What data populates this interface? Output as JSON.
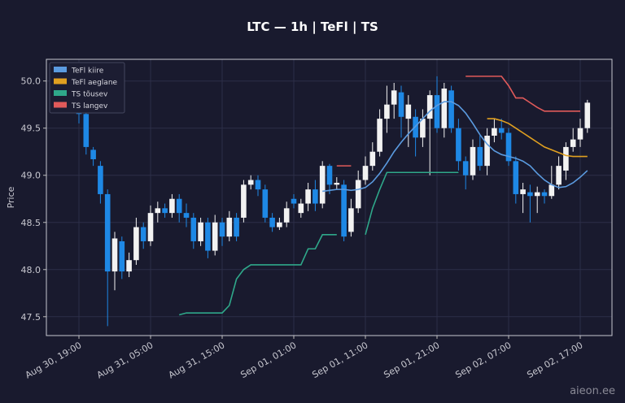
{
  "chart_data": {
    "type": "candlestick",
    "title": "LTC — 1h  |  TeFl  |  TS",
    "y_label": "Price",
    "watermark": "aieon.ee",
    "up_color": "#f2f2f2",
    "down_color": "#1e88e5",
    "grid": true,
    "legend": "upper left",
    "categories": [
      "Aug 30, 19:00",
      null,
      null,
      null,
      null,
      null,
      null,
      null,
      null,
      null,
      "Aug 31, 05:00",
      null,
      null,
      null,
      null,
      null,
      null,
      null,
      null,
      null,
      "Aug 31, 15:00",
      null,
      null,
      null,
      null,
      null,
      null,
      null,
      null,
      null,
      "Sep 01, 01:00",
      null,
      null,
      null,
      null,
      null,
      null,
      null,
      null,
      null,
      "Sep 01, 11:00",
      null,
      null,
      null,
      null,
      null,
      null,
      null,
      null,
      null,
      "Sep 01, 21:00",
      null,
      null,
      null,
      null,
      null,
      null,
      null,
      null,
      null,
      "Sep 02, 07:00",
      null,
      null,
      null,
      null,
      null,
      null,
      null,
      null,
      null,
      "Sep 02, 17:00",
      null
    ],
    "open": [
      49.8,
      49.65,
      49.27,
      49.1,
      48.8,
      47.98,
      48.3,
      47.98,
      48.1,
      48.45,
      48.3,
      48.6,
      48.65,
      48.6,
      48.75,
      48.6,
      48.55,
      48.3,
      48.5,
      48.2,
      48.5,
      48.35,
      48.55,
      48.55,
      48.9,
      48.95,
      48.85,
      48.55,
      48.45,
      48.5,
      48.75,
      48.6,
      48.7,
      48.85,
      48.7,
      49.1,
      48.9,
      48.9,
      48.4,
      48.65,
      48.95,
      49.1,
      49.25,
      49.6,
      49.75,
      49.88,
      49.6,
      49.62,
      49.4,
      49.6,
      49.85,
      49.5,
      49.9,
      49.5,
      49.15,
      49.0,
      49.3,
      49.1,
      49.42,
      49.5,
      49.45,
      49.15,
      48.8,
      48.82,
      48.78,
      48.82,
      48.78,
      48.9,
      49.05,
      49.3,
      49.38,
      49.5
    ],
    "high": [
      49.88,
      49.72,
      49.3,
      49.15,
      48.85,
      48.4,
      48.35,
      48.18,
      48.55,
      48.5,
      48.68,
      48.72,
      48.7,
      48.8,
      48.8,
      48.7,
      48.6,
      48.55,
      48.55,
      48.58,
      48.55,
      48.62,
      48.6,
      48.95,
      49.0,
      49.0,
      48.9,
      48.6,
      48.55,
      48.72,
      48.8,
      48.75,
      48.92,
      48.95,
      49.15,
      49.12,
      48.98,
      48.95,
      48.75,
      49.05,
      49.2,
      49.35,
      49.7,
      49.95,
      49.98,
      49.95,
      49.85,
      49.7,
      49.7,
      49.9,
      50.05,
      49.98,
      49.95,
      49.6,
      49.2,
      49.38,
      49.42,
      49.5,
      49.6,
      49.6,
      49.5,
      49.2,
      48.92,
      48.9,
      48.88,
      48.85,
      49.1,
      49.2,
      49.35,
      49.5,
      49.6,
      49.8
    ],
    "low": [
      49.55,
      49.22,
      49.1,
      48.7,
      47.4,
      47.78,
      47.9,
      47.92,
      48.05,
      48.22,
      48.25,
      48.5,
      48.55,
      48.55,
      48.5,
      48.45,
      48.22,
      48.25,
      48.12,
      48.15,
      48.25,
      48.3,
      48.3,
      48.5,
      48.85,
      48.78,
      48.5,
      48.4,
      48.42,
      48.45,
      48.65,
      48.55,
      48.62,
      48.62,
      48.65,
      48.8,
      48.85,
      48.3,
      48.35,
      48.6,
      48.9,
      49.05,
      49.2,
      49.45,
      49.6,
      49.4,
      49.3,
      49.2,
      49.3,
      49.0,
      49.45,
      49.4,
      49.45,
      49.05,
      48.85,
      48.95,
      49.05,
      49.0,
      49.35,
      49.38,
      49.1,
      48.7,
      48.6,
      48.5,
      48.6,
      48.7,
      48.75,
      48.85,
      48.95,
      49.25,
      49.3,
      49.45
    ],
    "close": [
      49.65,
      49.3,
      49.17,
      48.8,
      47.98,
      48.33,
      47.98,
      48.1,
      48.45,
      48.3,
      48.6,
      48.65,
      48.6,
      48.75,
      48.6,
      48.55,
      48.3,
      48.5,
      48.2,
      48.5,
      48.35,
      48.55,
      48.35,
      48.9,
      48.95,
      48.85,
      48.55,
      48.45,
      48.5,
      48.65,
      48.7,
      48.7,
      48.85,
      48.7,
      49.1,
      48.9,
      48.92,
      48.35,
      48.65,
      48.95,
      49.1,
      49.25,
      49.6,
      49.75,
      49.9,
      49.62,
      49.75,
      49.4,
      49.6,
      49.85,
      49.5,
      49.92,
      49.5,
      49.15,
      49.0,
      49.3,
      49.1,
      49.42,
      49.5,
      49.45,
      49.15,
      48.8,
      48.85,
      48.78,
      48.82,
      48.78,
      48.9,
      49.1,
      49.3,
      49.38,
      49.5,
      49.77
    ],
    "series": [
      {
        "name": "TeFl kiire",
        "color": "#5b9be0",
        "values": [
          null,
          null,
          null,
          null,
          null,
          null,
          null,
          null,
          null,
          null,
          null,
          null,
          null,
          null,
          null,
          null,
          null,
          null,
          null,
          null,
          null,
          null,
          null,
          null,
          null,
          null,
          null,
          null,
          null,
          null,
          null,
          null,
          null,
          null,
          48.83,
          48.84,
          48.85,
          48.85,
          48.84,
          48.85,
          48.87,
          48.93,
          49.02,
          49.13,
          49.25,
          49.35,
          49.44,
          49.52,
          49.6,
          49.68,
          49.74,
          49.78,
          49.78,
          49.74,
          49.66,
          49.55,
          49.43,
          49.33,
          49.26,
          49.22,
          49.2,
          49.18,
          49.15,
          49.1,
          49.02,
          48.95,
          48.9,
          48.87,
          48.88,
          48.92,
          48.98,
          49.05
        ]
      },
      {
        "name": "TeFl aeglane",
        "color": "#e0a020",
        "values": [
          null,
          null,
          null,
          null,
          null,
          null,
          null,
          null,
          null,
          null,
          null,
          null,
          null,
          null,
          null,
          null,
          null,
          null,
          null,
          null,
          null,
          null,
          null,
          null,
          null,
          null,
          null,
          null,
          null,
          null,
          null,
          null,
          null,
          null,
          null,
          null,
          null,
          null,
          null,
          null,
          null,
          null,
          null,
          null,
          null,
          null,
          null,
          null,
          null,
          null,
          null,
          null,
          null,
          null,
          null,
          null,
          null,
          49.6,
          49.6,
          49.58,
          49.55,
          49.5,
          49.45,
          49.4,
          49.35,
          49.3,
          49.27,
          49.24,
          49.21,
          49.2,
          49.2,
          49.2
        ]
      },
      {
        "name": "TS tõusev",
        "color": "#2fa88a",
        "values": [
          null,
          null,
          null,
          null,
          null,
          null,
          null,
          null,
          null,
          null,
          null,
          null,
          null,
          null,
          47.52,
          47.54,
          47.54,
          47.54,
          47.54,
          47.54,
          47.54,
          47.62,
          47.9,
          48.0,
          48.05,
          48.05,
          48.05,
          48.05,
          48.05,
          48.05,
          48.05,
          48.05,
          48.22,
          48.22,
          48.37,
          48.37,
          48.37,
          null,
          null,
          null,
          48.37,
          48.65,
          48.85,
          49.03,
          49.03,
          49.03,
          49.03,
          49.03,
          49.03,
          49.03,
          49.03,
          49.03,
          49.03,
          49.03,
          null,
          null,
          null,
          null,
          null,
          null,
          null,
          null,
          null,
          null,
          null,
          null,
          null,
          null,
          null,
          null,
          null,
          null
        ]
      },
      {
        "name": "TS langev",
        "color": "#e05a5a",
        "values": [
          null,
          null,
          null,
          null,
          null,
          null,
          null,
          null,
          null,
          null,
          null,
          null,
          null,
          null,
          null,
          null,
          null,
          null,
          null,
          null,
          null,
          null,
          null,
          null,
          null,
          null,
          null,
          null,
          null,
          null,
          null,
          null,
          null,
          null,
          null,
          null,
          49.1,
          49.1,
          49.1,
          null,
          null,
          null,
          null,
          null,
          null,
          null,
          null,
          null,
          null,
          null,
          null,
          null,
          null,
          null,
          50.05,
          50.05,
          50.05,
          50.05,
          50.05,
          50.05,
          49.95,
          49.82,
          49.82,
          49.77,
          49.72,
          49.68,
          49.68,
          49.68,
          49.68,
          49.68,
          49.68,
          null
        ]
      }
    ],
    "ylim": [
      47.3,
      50.23
    ],
    "yticks": [
      47.5,
      {
        "value": 48.0,
        "label": "48.0"
      },
      48.5,
      {
        "value": 49.0,
        "label": "49.0"
      },
      49.5,
      {
        "value": 50.0,
        "label": "50.0"
      }
    ]
  }
}
